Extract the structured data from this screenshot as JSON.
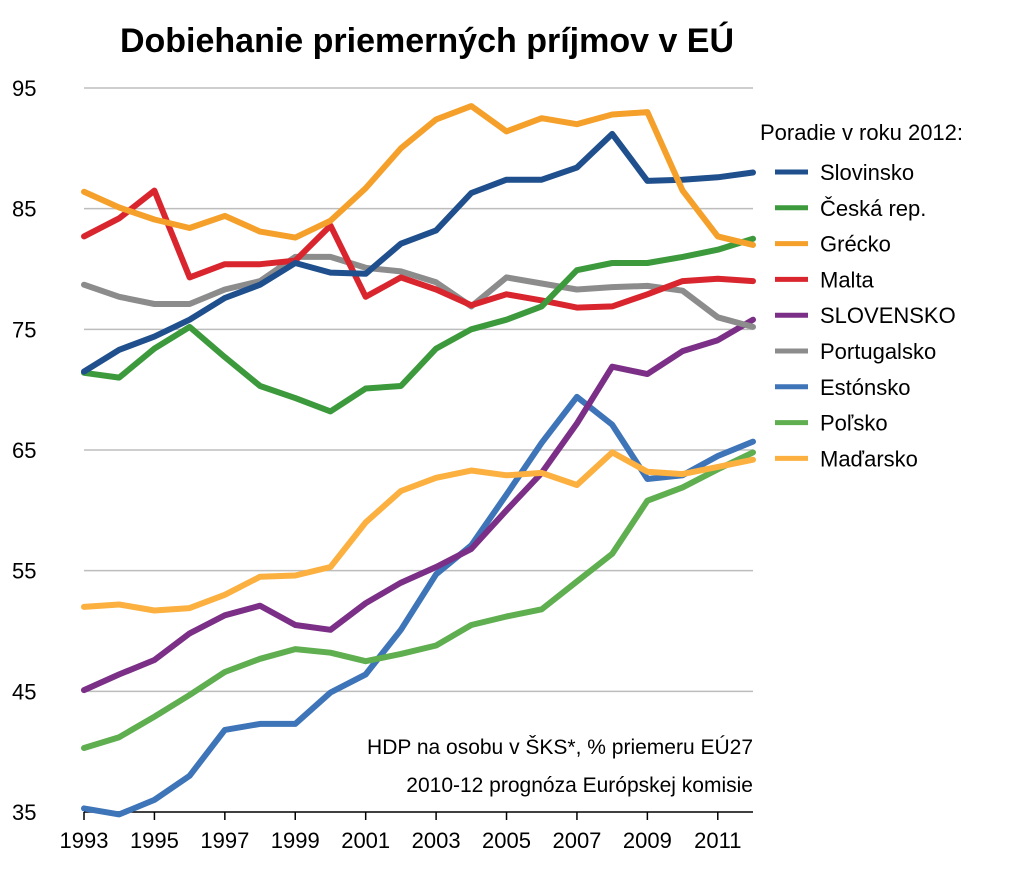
{
  "chart_data": {
    "type": "line",
    "title": "Dobiehanie priemerných príjmov v EÚ",
    "xlabel": "",
    "ylabel": "",
    "x": [
      1993,
      1994,
      1995,
      1996,
      1997,
      1998,
      1999,
      2000,
      2001,
      2002,
      2003,
      2004,
      2005,
      2006,
      2007,
      2008,
      2009,
      2010,
      2011,
      2012
    ],
    "xticks": [
      "1993",
      "1995",
      "1997",
      "1999",
      "2001",
      "2003",
      "2005",
      "2007",
      "2009",
      "2011"
    ],
    "yticks": [
      "95",
      "85",
      "75",
      "65",
      "55",
      "45",
      "35"
    ],
    "xlim": [
      1993,
      2012
    ],
    "ylim": [
      35,
      95
    ],
    "grid": true,
    "legend_title": "Poradie v roku 2012:",
    "legend_placement": "top-right",
    "annotation": [
      "HDP na osobu v ŠKS*, % priemeru EÚ27",
      "2010-12 prognóza Európskej komisie"
    ],
    "series": [
      {
        "name": "Slovinsko",
        "color": "#1f4f8c",
        "values": [
          71.5,
          73.3,
          74.4,
          75.8,
          77.6,
          78.7,
          80.5,
          79.7,
          79.6,
          82.1,
          83.2,
          86.3,
          87.4,
          87.4,
          88.4,
          91.2,
          87.3,
          87.4,
          87.6,
          88.0
        ]
      },
      {
        "name": "Česká rep.",
        "color": "#3c9a3c",
        "values": [
          71.4,
          71.0,
          73.4,
          75.2,
          72.7,
          70.3,
          69.3,
          68.2,
          70.1,
          70.3,
          73.4,
          75.0,
          75.8,
          76.9,
          79.9,
          80.5,
          80.5,
          81.0,
          81.6,
          82.5
        ]
      },
      {
        "name": "Grécko",
        "color": "#f5a02a",
        "values": [
          86.4,
          85.1,
          84.1,
          83.4,
          84.4,
          83.1,
          82.6,
          84.0,
          86.7,
          90.0,
          92.4,
          93.5,
          91.4,
          92.5,
          92.0,
          92.8,
          93.0,
          86.5,
          82.7,
          82.0
        ]
      },
      {
        "name": "Malta",
        "color": "#d9262e",
        "values": [
          82.7,
          84.2,
          86.5,
          79.3,
          80.4,
          80.4,
          80.7,
          83.6,
          77.7,
          79.3,
          78.3,
          77.0,
          77.9,
          77.4,
          76.8,
          76.9,
          77.9,
          79.0,
          79.2,
          79.0
        ]
      },
      {
        "name": "SLOVENSKO",
        "color": "#7b2f86",
        "values": [
          45.1,
          46.4,
          47.6,
          49.8,
          51.3,
          52.1,
          50.5,
          50.1,
          52.3,
          54.0,
          55.3,
          56.8,
          60.0,
          63.1,
          67.2,
          71.9,
          71.3,
          73.2,
          74.1,
          75.8
        ]
      },
      {
        "name": "Portugalsko",
        "color": "#8c8c8c",
        "values": [
          78.7,
          77.7,
          77.1,
          77.1,
          78.3,
          79.0,
          81.0,
          81.0,
          80.1,
          79.8,
          78.9,
          76.9,
          79.3,
          78.8,
          78.3,
          78.5,
          78.6,
          78.2,
          76.0,
          75.2
        ]
      },
      {
        "name": "Estónsko",
        "color": "#3e74b8",
        "values": [
          35.3,
          34.8,
          36.0,
          38.0,
          41.8,
          42.3,
          42.3,
          44.9,
          46.4,
          50.1,
          54.7,
          57.1,
          61.3,
          65.6,
          69.4,
          67.1,
          62.6,
          62.9,
          64.5,
          65.7
        ]
      },
      {
        "name": "Poľsko",
        "color": "#5fae4f",
        "values": [
          40.3,
          41.2,
          42.9,
          44.7,
          46.6,
          47.7,
          48.5,
          48.2,
          47.5,
          48.1,
          48.8,
          50.5,
          51.2,
          51.8,
          54.1,
          56.4,
          60.8,
          61.9,
          63.4,
          64.8
        ]
      },
      {
        "name": "Maďarsko",
        "color": "#fbb040",
        "values": [
          52.0,
          52.2,
          51.7,
          51.9,
          53.0,
          54.5,
          54.6,
          55.3,
          59.0,
          61.6,
          62.7,
          63.3,
          62.9,
          63.1,
          62.1,
          64.8,
          63.2,
          63.0,
          63.6,
          64.2
        ]
      }
    ]
  }
}
